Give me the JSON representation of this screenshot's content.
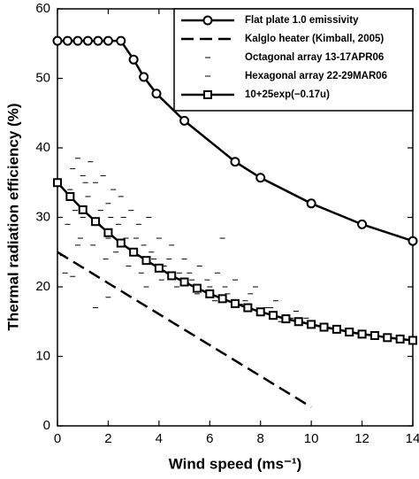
{
  "chart_data": {
    "type": "line",
    "xlabel": "Wind speed (ms⁻¹)",
    "ylabel": "Thermal radiation efficiency (%)",
    "xlim": [
      0,
      14
    ],
    "ylim": [
      0,
      60
    ],
    "xticks": [
      0,
      2,
      4,
      6,
      8,
      10,
      12,
      14
    ],
    "yticks": [
      0,
      10,
      20,
      30,
      40,
      50,
      60
    ],
    "legend": "upper right",
    "series": [
      {
        "name": "Flat plate 1.0 emissivity",
        "type": "line",
        "marker": "circle",
        "dash": "solid",
        "color": "#000000",
        "x": [
          0,
          0.4,
          0.8,
          1.2,
          1.6,
          2,
          2.5,
          3,
          3.4,
          3.9,
          5,
          7,
          8,
          10,
          12,
          14
        ],
        "values": [
          55.4,
          55.4,
          55.4,
          55.4,
          55.4,
          55.4,
          55.4,
          52.7,
          50.2,
          47.8,
          43.9,
          38,
          35.7,
          32,
          29,
          26.6
        ]
      },
      {
        "name": "Kalglo heater (Kimball, 2005)",
        "type": "line",
        "marker": "none",
        "dash": "dashed",
        "color": "#000000",
        "x": [
          0,
          10
        ],
        "values": [
          25,
          2.7
        ]
      },
      {
        "name": "Octagonal array 13-17APR06",
        "type": "scatter",
        "marker": "dash",
        "color": "#000000",
        "x": [
          0.5,
          0.6,
          0.8,
          1,
          1,
          1.2,
          1.3,
          1.5,
          1.6,
          1.8,
          2,
          2,
          2.2,
          2.4,
          2.5,
          2.7,
          2.9,
          3,
          3.2,
          3.4,
          3.6,
          3.8,
          4,
          4.2,
          4.5,
          4.8,
          5,
          5.3,
          5.6,
          6,
          6.3,
          6.7,
          7,
          7.4,
          7.8,
          8.2,
          8.6,
          9,
          9.4,
          9.8,
          6.5,
          3.5,
          0.3,
          0.8,
          2,
          1.5
        ],
        "values": [
          34,
          37,
          38.5,
          36,
          30,
          33,
          38,
          35,
          29,
          36,
          32,
          27,
          34,
          29,
          33,
          27,
          31,
          25,
          29,
          26,
          30,
          24,
          27,
          23,
          26,
          22,
          24,
          21,
          23,
          20,
          22,
          19,
          21,
          18,
          20,
          17,
          18,
          16,
          16.5,
          15.5,
          27,
          20,
          22,
          26,
          18.5,
          17
        ]
      },
      {
        "name": "Hexagonal array 22-29MAR06",
        "type": "scatter",
        "marker": "dash",
        "color": "#000000",
        "x": [
          0.4,
          0.7,
          0.9,
          1.1,
          1.4,
          1.7,
          1.9,
          2.1,
          2.3,
          2.6,
          2.8,
          3.1,
          3.3,
          3.7,
          4.1,
          4.4,
          4.7,
          5.2,
          5.5,
          5.9,
          6.2,
          6.6,
          7.2,
          7.6,
          8,
          8.4,
          8.8,
          9.2,
          0.2,
          0.6
        ],
        "values": [
          29,
          31,
          27,
          35,
          26,
          31,
          24,
          30,
          25,
          30,
          23,
          27,
          22,
          25,
          21,
          24,
          20,
          22,
          19,
          21,
          18,
          20,
          17.5,
          19,
          16,
          17,
          15,
          15.5,
          24.5,
          21.5
        ]
      },
      {
        "name": "10+25exp(−0.17u)",
        "type": "line",
        "marker": "square",
        "dash": "solid",
        "color": "#000000",
        "x": [
          0,
          0.5,
          1,
          1.5,
          2,
          2.5,
          3,
          3.5,
          4,
          4.5,
          5,
          5.5,
          6,
          6.5,
          7,
          7.5,
          8,
          8.5,
          9,
          9.5,
          10,
          10.5,
          11,
          11.5,
          12,
          12.5,
          13,
          13.5,
          14
        ],
        "values": [
          35,
          33,
          31.1,
          29.4,
          27.8,
          26.3,
          25,
          23.8,
          22.7,
          21.6,
          20.7,
          19.8,
          19,
          18.3,
          17.6,
          17,
          16.4,
          15.9,
          15.4,
          15,
          14.6,
          14.2,
          13.9,
          13.5,
          13.2,
          13,
          12.7,
          12.5,
          12.3
        ]
      }
    ]
  }
}
